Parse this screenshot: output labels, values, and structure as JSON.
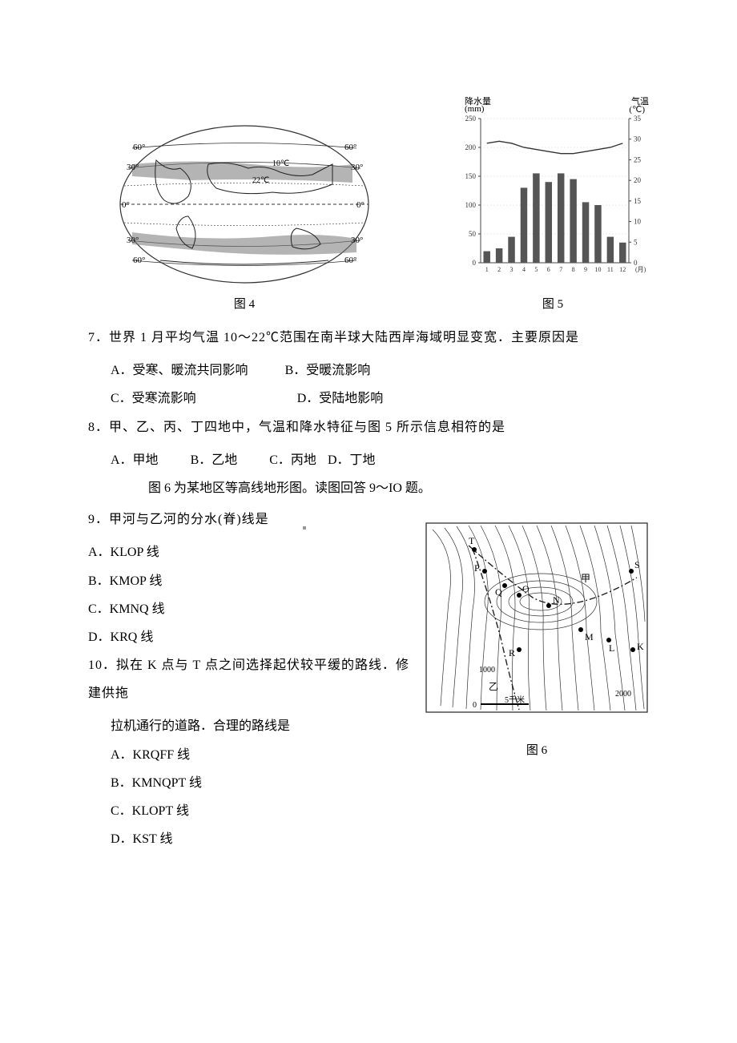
{
  "figures": {
    "fig4": {
      "caption": "图 4",
      "lat_labels": [
        "60°",
        "30°",
        "0°",
        "30°",
        "60°"
      ],
      "temp_labels": [
        "10℃",
        "22℃"
      ]
    },
    "fig5": {
      "caption": "图 5",
      "left_axis_title": "降水量",
      "left_axis_unit": "(mm)",
      "right_axis_title": "气温",
      "right_axis_unit": "(℃)",
      "left_ticks": [
        0,
        50,
        100,
        150,
        200,
        250
      ],
      "right_ticks": [
        0,
        5,
        10,
        15,
        20,
        25,
        30,
        35
      ],
      "x_labels": [
        "1",
        "2",
        "3",
        "4",
        "5",
        "6",
        "7",
        "8",
        "9",
        "10",
        "11",
        "12",
        "(月)"
      ],
      "precip_values": [
        20,
        25,
        45,
        130,
        155,
        140,
        155,
        145,
        105,
        100,
        45,
        35
      ],
      "temp_values": [
        29,
        29.5,
        29,
        28,
        27.5,
        27,
        26.5,
        26.5,
        27,
        27.5,
        28,
        29
      ],
      "bar_color": "#555555",
      "line_color": "#333333",
      "axis_color": "#444444",
      "grid_color": "#cccccc"
    },
    "fig6": {
      "caption": "图 6",
      "points": [
        "T",
        "S",
        "P",
        "O",
        "N",
        "M",
        "R",
        "K",
        "L",
        "Q"
      ],
      "contour_labels": [
        "1000",
        "2000"
      ],
      "scale_label": "5千米",
      "scale_start": "0",
      "rivers": [
        "甲",
        "乙"
      ]
    }
  },
  "q7": {
    "stem": "7．世界 1 月平均气温 10～22℃范围在南半球大陆西岸海域明显变宽．主要原因是",
    "a": "A．受寒、暖流共同影响",
    "b": "B．受暖流影响",
    "c": "C．受寒流影响",
    "d": "D．受陆地影响"
  },
  "q8": {
    "stem": "8．甲、乙、丙、丁四地中，气温和降水特征与图 5 所示信息相符的是",
    "a": "A．甲地",
    "b": "B．乙地",
    "c": "C．丙地",
    "d": "D．丁地"
  },
  "intro6": "图 6 为某地区等高线地形图。读图回答 9～IO 题。",
  "q9": {
    "stem": "9．甲河与乙河的分水(脊)线是",
    "a": "A．KLOP 线",
    "b": "B．KMOP 线",
    "c": "C．KMNQ 线",
    "d": "D．KRQ 线"
  },
  "q10": {
    "stem_l1": "10．拟在 K 点与 T 点之间选择起伏较平缓的路线．修建供拖",
    "stem_l2": "拉机通行的道路．合理的路线是",
    "a": "A．KRQFF 线",
    "b": "B．KMNQPT 线",
    "c": "C．KLOPT 线",
    "d": "D．KST 线"
  }
}
